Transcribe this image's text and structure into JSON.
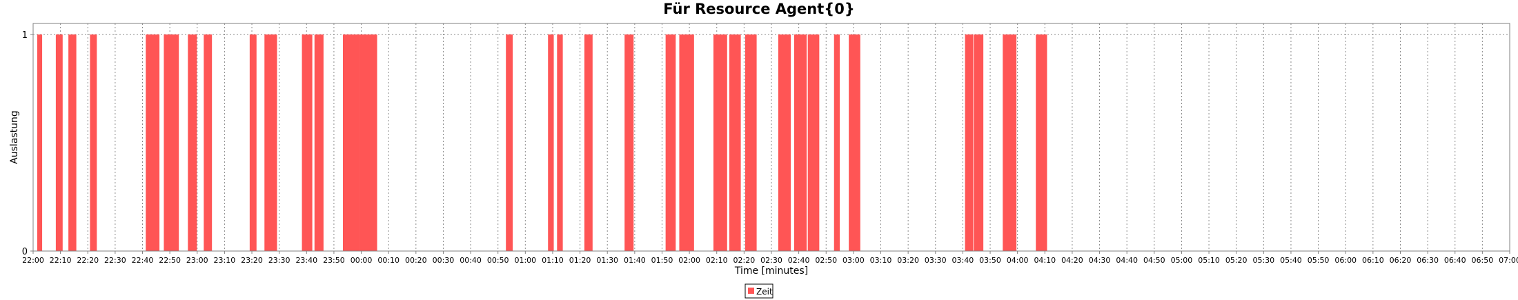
{
  "chart_data": {
    "type": "bar",
    "title": "Für Resource Agent{0}",
    "xlabel": "Time [minutes]",
    "ylabel": "Auslastung",
    "x_unit": "minutes since 22:00",
    "xlim": [
      0,
      540
    ],
    "ylim": [
      0,
      1
    ],
    "yticks": [
      0,
      1
    ],
    "grid": true,
    "legend_position": "bottom-center",
    "colors": {
      "bar": "#ff5555",
      "grid": "#8a8a8a",
      "axis": "#808080"
    },
    "xtick_labels": [
      "22:00",
      "22:10",
      "22:20",
      "22:30",
      "22:40",
      "22:50",
      "23:00",
      "23:10",
      "23:20",
      "23:30",
      "23:40",
      "23:50",
      "00:00",
      "00:10",
      "00:20",
      "00:30",
      "00:40",
      "00:50",
      "01:00",
      "01:10",
      "01:20",
      "01:30",
      "01:40",
      "01:50",
      "02:00",
      "02:10",
      "02:20",
      "02:30",
      "02:40",
      "02:50",
      "03:00",
      "03:10",
      "03:20",
      "03:30",
      "03:40",
      "03:50",
      "04:00",
      "04:10",
      "04:20",
      "04:30",
      "04:40",
      "04:50",
      "05:00",
      "05:10",
      "05:20",
      "05:30",
      "05:40",
      "05:50",
      "06:00",
      "06:10",
      "06:20",
      "06:30",
      "06:40",
      "06:50",
      "07:00"
    ],
    "series": [
      {
        "name": "Zeit",
        "value": 1,
        "intervals": [
          [
            1.5,
            3.3
          ],
          [
            8.3,
            10.8
          ],
          [
            12.9,
            15.8
          ],
          [
            20.8,
            23.3
          ],
          [
            41.2,
            46.2
          ],
          [
            47.8,
            53.3
          ],
          [
            56.6,
            59.9
          ],
          [
            62.4,
            65.4
          ],
          [
            79.2,
            81.7
          ],
          [
            84.6,
            89.2
          ],
          [
            98.3,
            102.1
          ],
          [
            102.9,
            106.2
          ],
          [
            113.3,
            119.6
          ],
          [
            119.6,
            125.8
          ],
          [
            172.9,
            175.4
          ],
          [
            188.3,
            190.4
          ],
          [
            191.6,
            193.7
          ],
          [
            201.6,
            204.6
          ],
          [
            216.3,
            219.6
          ],
          [
            231.3,
            235.0
          ],
          [
            236.3,
            241.7
          ],
          [
            248.8,
            253.8
          ],
          [
            254.6,
            258.8
          ],
          [
            260.4,
            264.6
          ],
          [
            272.5,
            277.1
          ],
          [
            278.3,
            282.9
          ],
          [
            283.3,
            287.5
          ],
          [
            292.9,
            295.0
          ],
          [
            298.3,
            302.5
          ],
          [
            340.8,
            343.8
          ],
          [
            344.0,
            347.5
          ],
          [
            354.6,
            359.6
          ],
          [
            366.7,
            370.8
          ]
        ]
      }
    ]
  }
}
